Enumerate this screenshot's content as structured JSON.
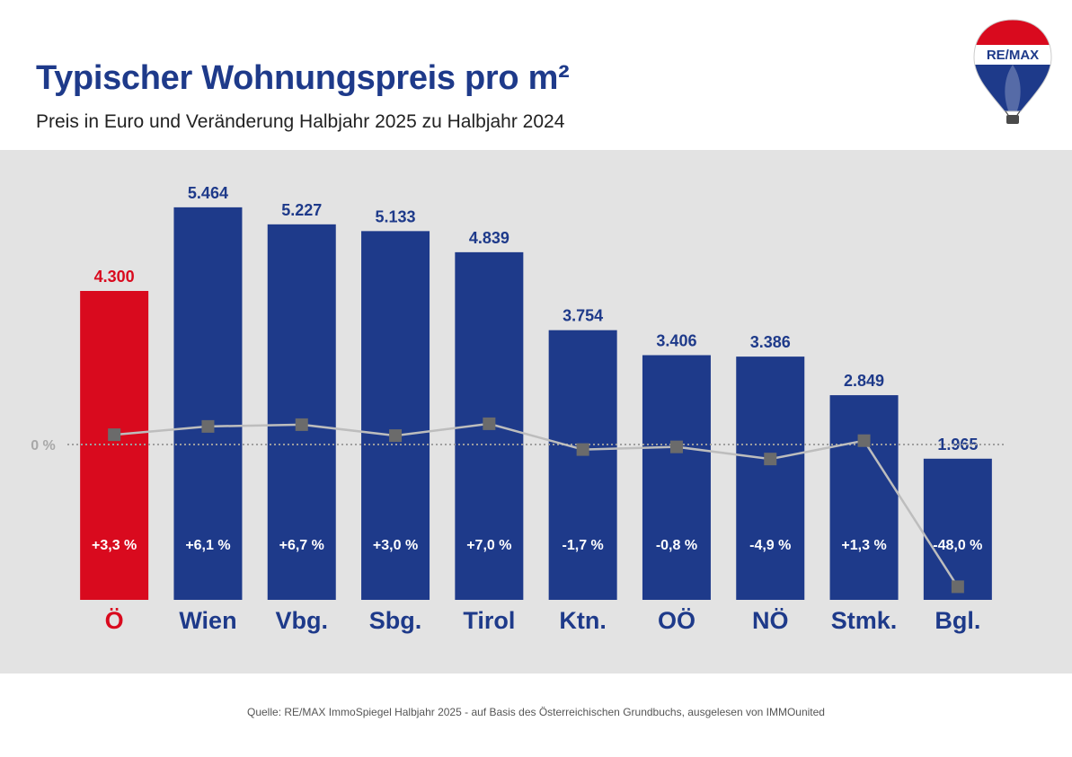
{
  "header": {
    "title": "Typischer Wohnungspreis pro m²",
    "subtitle": "Preis in Euro und Veränderung Halbjahr 2025 zu Halbjahr 2024"
  },
  "logo": {
    "text": "RE/MAX"
  },
  "colors": {
    "highlight_bar": "#d90a1e",
    "bar": "#1e3a8a",
    "line": "#bdbdbd",
    "marker": "#6b6b6b",
    "zero_line": "#9e9e9e",
    "panel": "#e3e3e3"
  },
  "chart_data": {
    "type": "bar",
    "title": "Typischer Wohnungspreis pro m²",
    "subtitle": "Preis in Euro und Veränderung Halbjahr 2025 zu Halbjahr 2024",
    "categories": [
      "Ö",
      "Wien",
      "Vbg.",
      "Sbg.",
      "Tirol",
      "Ktn.",
      "OÖ",
      "NÖ",
      "Stmk.",
      "Bgl."
    ],
    "series": [
      {
        "type": "bar",
        "values": [
          4300,
          5464,
          5227,
          5133,
          4839,
          3754,
          3406,
          3386,
          2849,
          1965
        ],
        "labels": [
          "4.300",
          "5.464",
          "5.227",
          "5.133",
          "4.839",
          "3.754",
          "3.406",
          "3.386",
          "2.849",
          "1.965"
        ]
      },
      {
        "type": "line",
        "values": [
          3.3,
          6.1,
          6.7,
          3.0,
          7.0,
          -1.7,
          -0.8,
          -4.9,
          1.3,
          -48.0
        ],
        "labels": [
          "+3,3 %",
          "+6,1 %",
          "+6,7 %",
          "+3,0 %",
          "+7,0 %",
          "-1,7 %",
          "-0,8 %",
          "-4,9 %",
          "+1,3 %",
          "-48,0 %"
        ]
      }
    ],
    "highlight_index": 0,
    "zero_label": "0 %",
    "ylim": [
      0,
      6000
    ],
    "grid": false,
    "legend": "none"
  },
  "footer": {
    "source": "Quelle: RE/MAX ImmoSpiegel Halbjahr 2025 - auf Basis des Österreichischen Grundbuchs, ausgelesen von IMMOunited"
  }
}
